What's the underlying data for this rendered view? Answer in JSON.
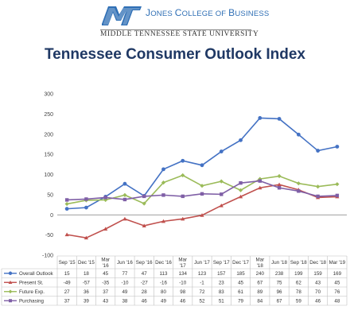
{
  "header": {
    "college_prefix": "J",
    "college_rest": "ONES ",
    "college_c": "C",
    "college_ollege": "OLLEGE OF ",
    "college_b": "B",
    "college_usiness": "USINESS",
    "university": "MIDDLE TENNESSEE STATE UNIVERSITY",
    "logo_text": "MT"
  },
  "colors": {
    "title": "#1f3864",
    "overall": "#4472c4",
    "present": "#c0504d",
    "future": "#9bbb59",
    "purchasing": "#7f5fa6",
    "logo": "#2f6fb5"
  },
  "chart_data": {
    "type": "line",
    "title": "Tennessee Consumer Outlook Index",
    "ylim": [
      -100,
      300
    ],
    "yticks": [
      -100,
      -50,
      0,
      50,
      100,
      150,
      200,
      250,
      300
    ],
    "categories": [
      [
        "Sep '15"
      ],
      [
        "Dec '15"
      ],
      [
        "Mar",
        "'16"
      ],
      [
        "Jun '16"
      ],
      [
        "Sep '16"
      ],
      [
        "Dec '16"
      ],
      [
        "Mar",
        "'17"
      ],
      [
        "Jun '17"
      ],
      [
        "Sep '17"
      ],
      [
        "Dec '17"
      ],
      [
        "Mar",
        "'18"
      ],
      [
        "Jun '18"
      ],
      [
        "Sep '18"
      ],
      [
        "Dec '18"
      ],
      [
        "Mar '19"
      ]
    ],
    "series": [
      {
        "name": "Overall Outlook",
        "color": "#4472c4",
        "values": [
          15,
          18,
          45,
          77,
          47,
          113,
          134,
          123,
          157,
          185,
          240,
          238,
          199,
          159,
          169
        ]
      },
      {
        "name": "Present St.",
        "color": "#c0504d",
        "values": [
          -49,
          -57,
          -35,
          -10,
          -27,
          -16,
          -10,
          -1,
          23,
          45,
          67,
          75,
          62,
          43,
          45
        ]
      },
      {
        "name": "Future Exp.",
        "color": "#9bbb59",
        "values": [
          27,
          36,
          37,
          49,
          28,
          80,
          98,
          72,
          83,
          61,
          89,
          96,
          78,
          70,
          76
        ]
      },
      {
        "name": "Purchasing",
        "color": "#7f5fa6",
        "values": [
          37,
          39,
          43,
          38,
          46,
          49,
          46,
          52,
          51,
          79,
          84,
          67,
          59,
          46,
          48
        ]
      }
    ],
    "grid": false,
    "legend": "table-left"
  }
}
